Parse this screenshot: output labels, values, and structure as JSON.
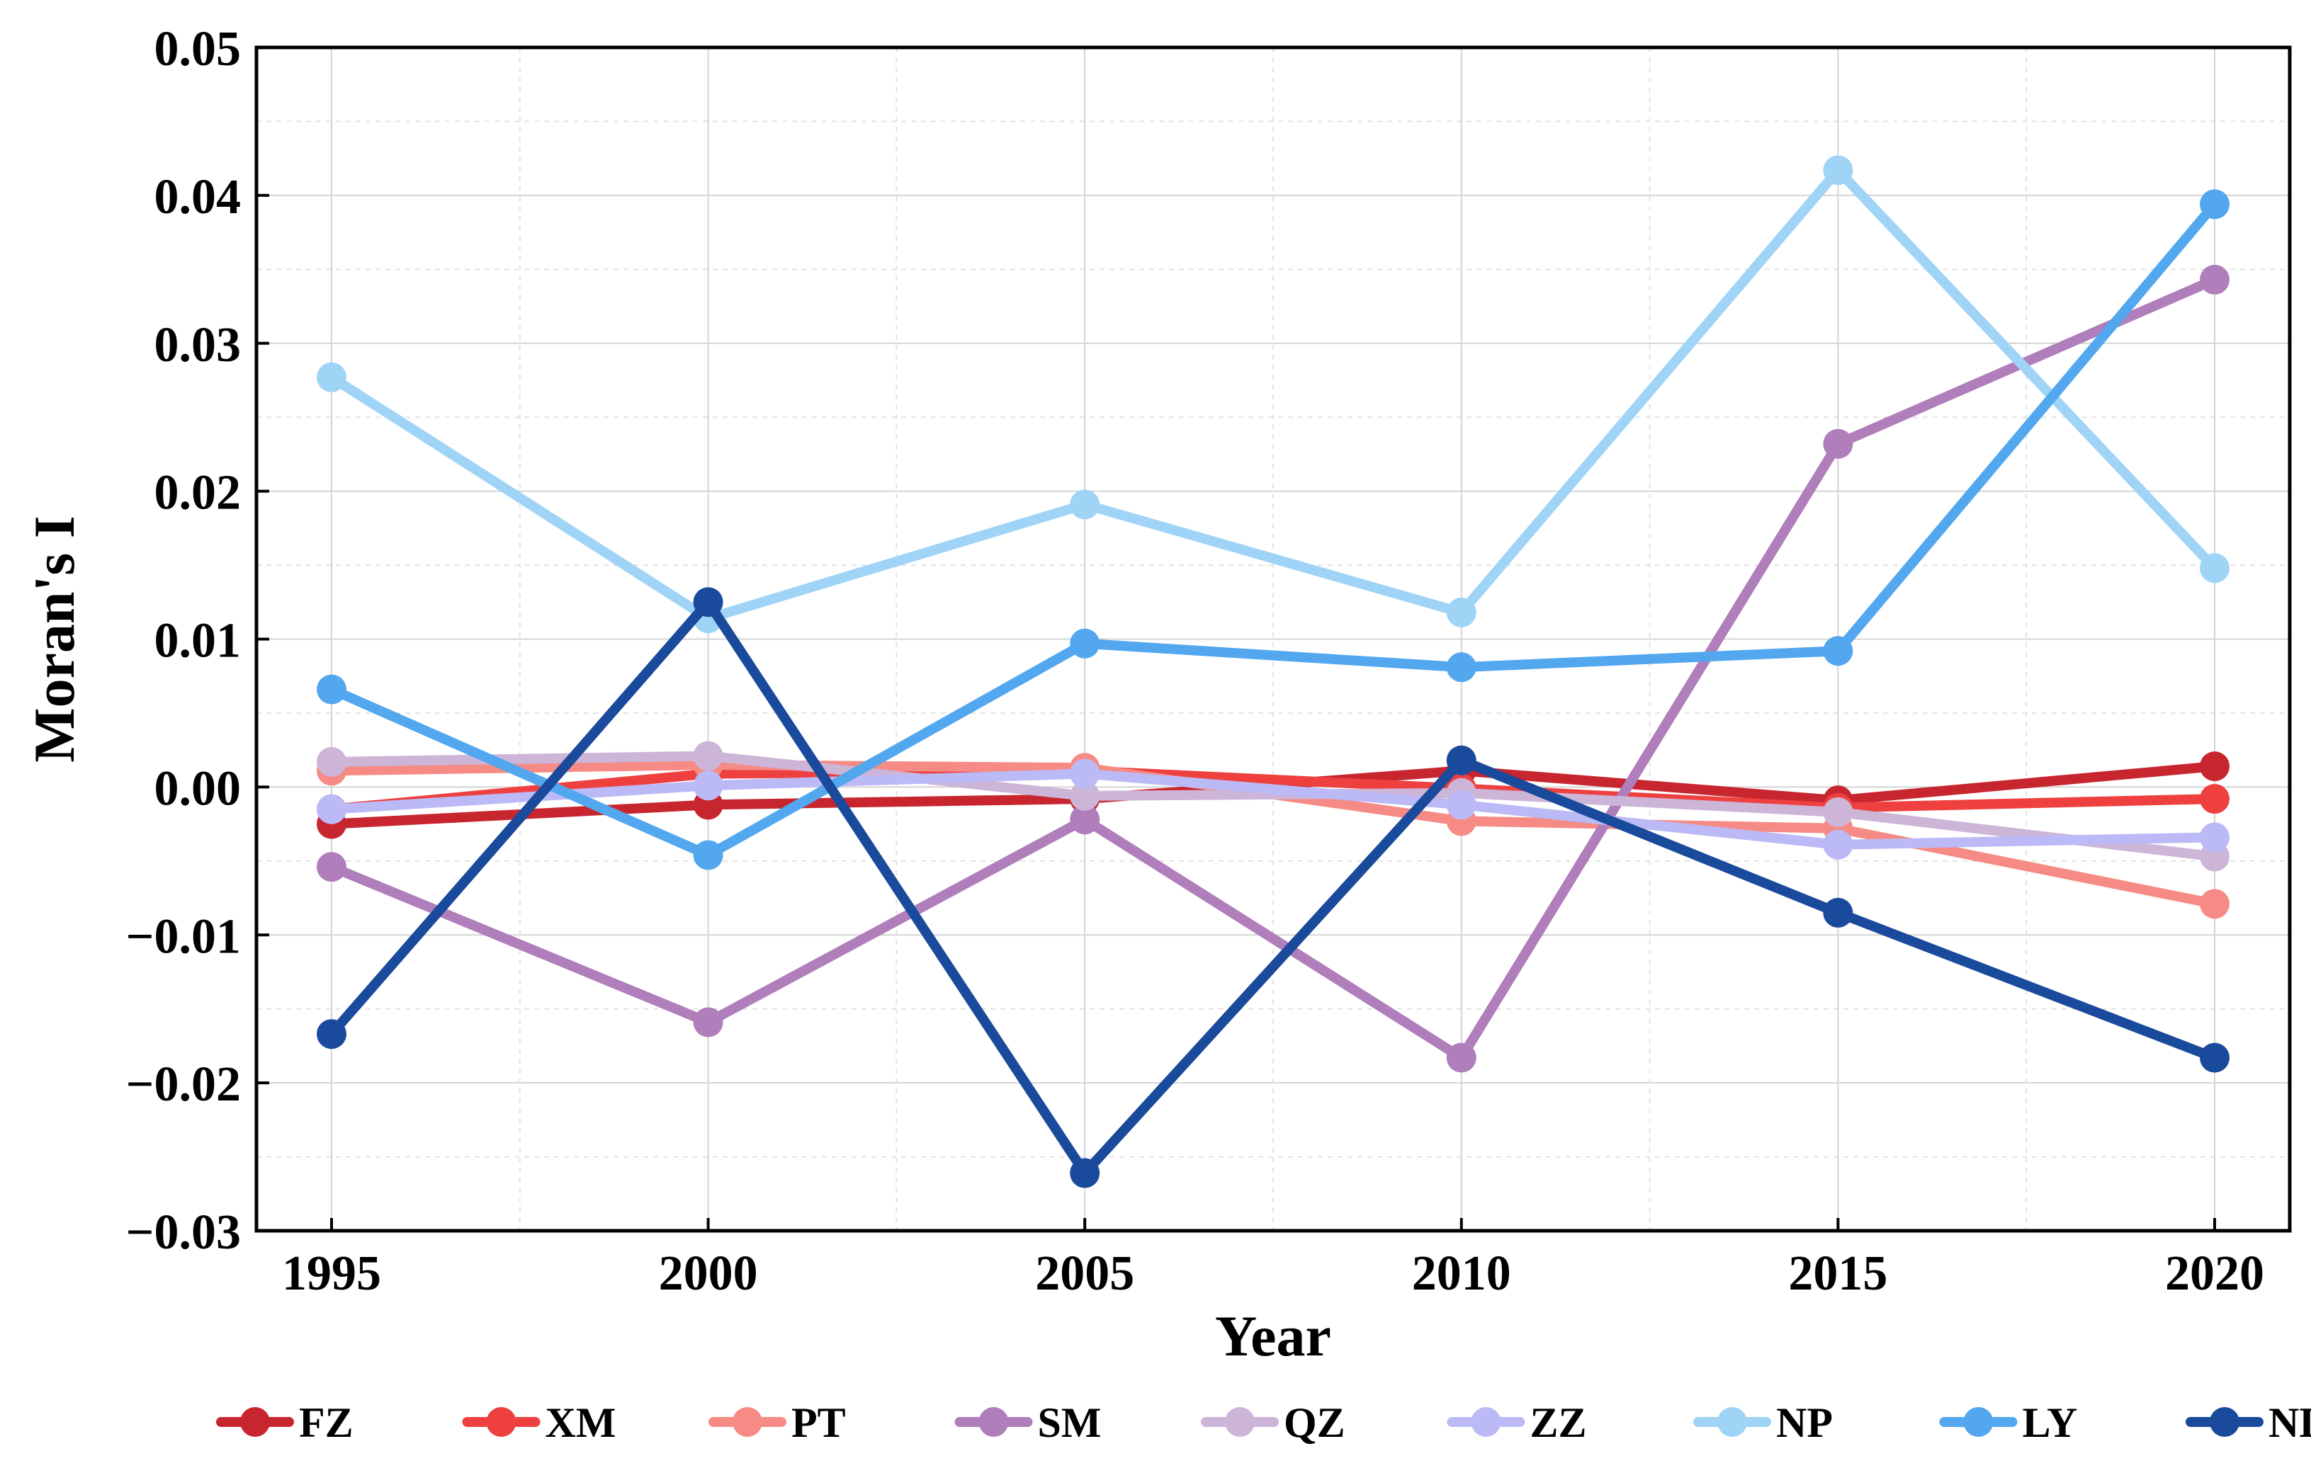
{
  "chart_data": {
    "type": "line",
    "title": "",
    "xlabel": "Year",
    "ylabel": "Moran's I",
    "x": [
      1995,
      2000,
      2005,
      2010,
      2015,
      2020
    ],
    "xlim": [
      1995,
      2020
    ],
    "ylim": [
      -0.03,
      0.05
    ],
    "x_ticks": [
      1995,
      2000,
      2005,
      2010,
      2015,
      2020
    ],
    "x_tick_labels": [
      "1995",
      "2000",
      "2005",
      "2010",
      "2015",
      "2020"
    ],
    "y_ticks": [
      -0.03,
      -0.02,
      -0.01,
      0.0,
      0.01,
      0.02,
      0.03,
      0.04,
      0.05
    ],
    "y_tick_labels": [
      "−0.03",
      "−0.02",
      "−0.01",
      "0.00",
      "0.01",
      "0.02",
      "0.03",
      "0.04",
      "0.05"
    ],
    "grid": true,
    "legend_position": "bottom",
    "series": [
      {
        "name": "FZ",
        "color": "#c8262f",
        "values": [
          -0.0025,
          -0.0012,
          -0.0008,
          0.0011,
          -0.0009,
          0.0014
        ]
      },
      {
        "name": "XM",
        "color": "#ef4040",
        "values": [
          -0.0015,
          0.0009,
          0.0011,
          -0.0001,
          -0.0014,
          -0.0008
        ]
      },
      {
        "name": "PT",
        "color": "#f58b84",
        "values": [
          0.0011,
          0.0015,
          0.0013,
          -0.0023,
          -0.0028,
          -0.0079
        ]
      },
      {
        "name": "SM",
        "color": "#b07eba",
        "values": [
          -0.0054,
          -0.0159,
          -0.0022,
          -0.0183,
          0.0232,
          0.0343
        ]
      },
      {
        "name": "QZ",
        "color": "#cdb5d8",
        "values": [
          0.0017,
          0.0021,
          -0.0006,
          -0.0004,
          -0.0017,
          -0.0047
        ]
      },
      {
        "name": "ZZ",
        "color": "#bbbaf7",
        "values": [
          -0.0015,
          0.0001,
          0.0009,
          -0.0012,
          -0.0039,
          -0.0034
        ]
      },
      {
        "name": "NP",
        "color": "#9fd4f7",
        "values": [
          0.0277,
          0.0114,
          0.0191,
          0.0118,
          0.0417,
          0.0148
        ]
      },
      {
        "name": "LY",
        "color": "#52a7ef",
        "values": [
          0.0066,
          -0.0046,
          0.0097,
          0.0081,
          0.0092,
          0.0394
        ]
      },
      {
        "name": "ND",
        "color": "#1a4a9c",
        "values": [
          -0.0167,
          0.0125,
          -0.0261,
          0.0018,
          -0.0085,
          -0.0183
        ]
      }
    ]
  }
}
